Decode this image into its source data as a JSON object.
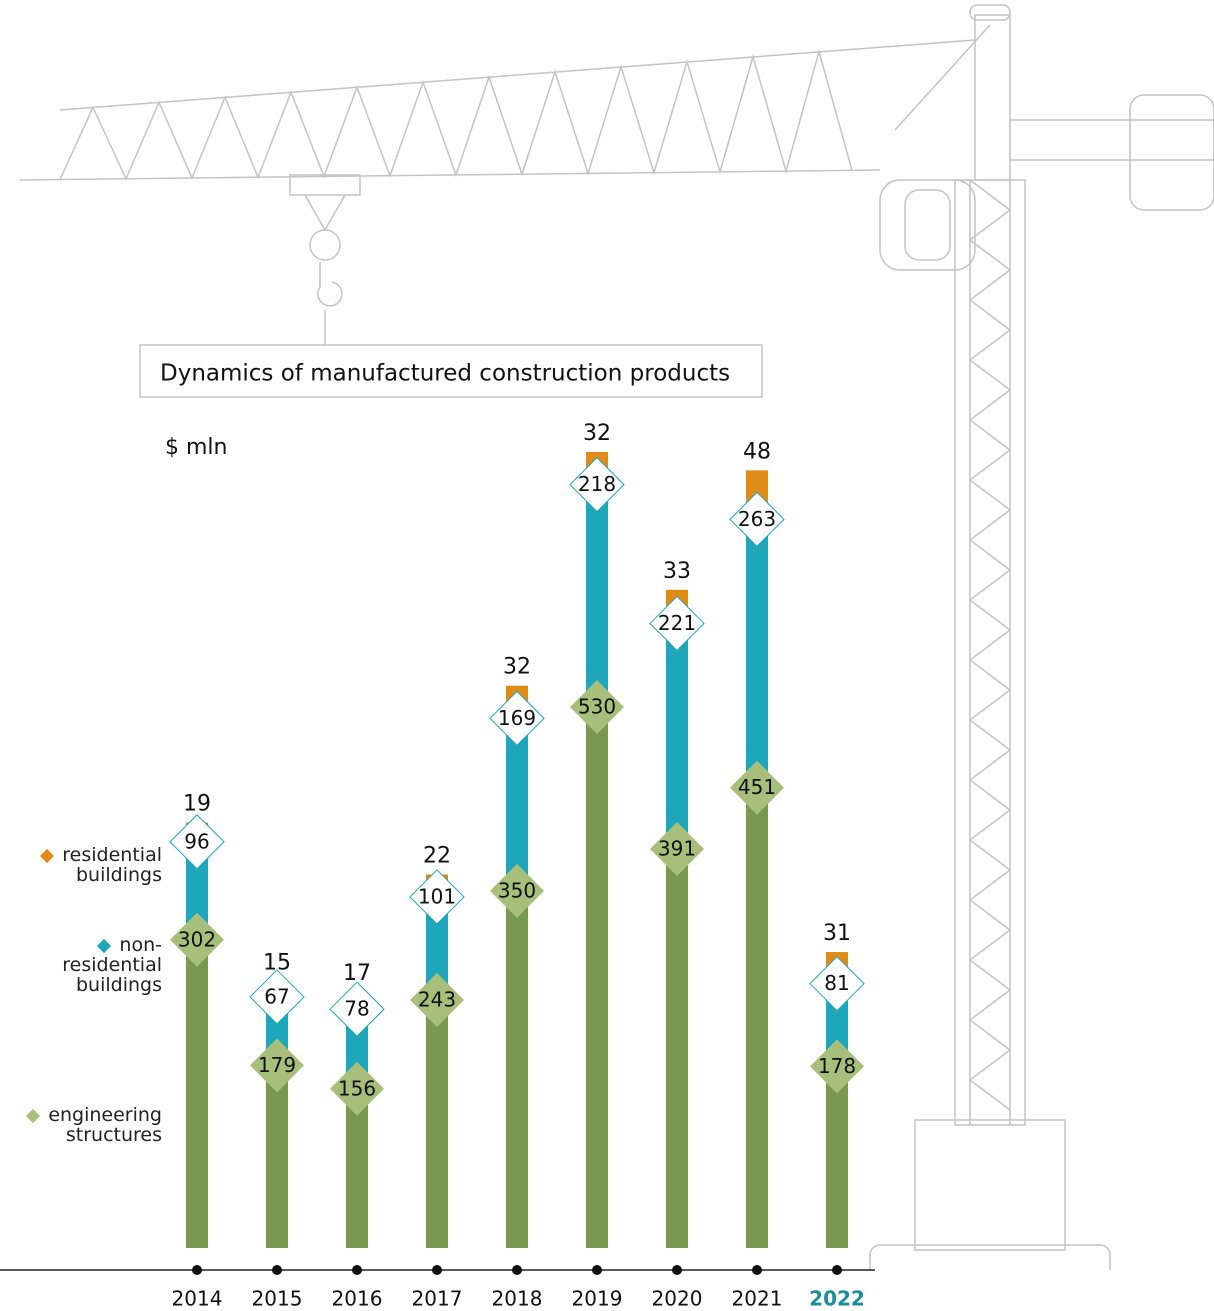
{
  "chart_data": {
    "type": "stacked-bar",
    "title": "Dynamics of manufactured construction products",
    "unit_label": "$ mln",
    "categories": [
      "2014",
      "2015",
      "2016",
      "2017",
      "2018",
      "2019",
      "2020",
      "2021",
      "2022"
    ],
    "highlight_index": 8,
    "highlight_color": "#1b8e9c",
    "series": [
      {
        "name": "engineering structures",
        "color": "#7a9950",
        "label_color": "#a8bf7c",
        "values": [
          302,
          179,
          156,
          243,
          350,
          530,
          391,
          451,
          178
        ]
      },
      {
        "name": "non-residential buildings",
        "color": "#1ea6ba",
        "label_color": "#ffffff",
        "values": [
          96,
          67,
          78,
          101,
          169,
          218,
          221,
          263,
          81
        ]
      },
      {
        "name": "residential buildings",
        "color": "#e08b16",
        "label_color": "#e08b16",
        "values": [
          19,
          15,
          17,
          22,
          32,
          32,
          33,
          48,
          31
        ]
      }
    ]
  }
}
